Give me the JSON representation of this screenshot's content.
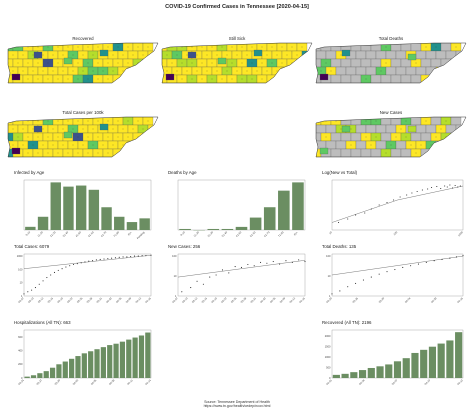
{
  "title": "COVID-19 Confirmed Cases in Tennessee [2020-04-15]",
  "colors": {
    "bar": "#6b8e62",
    "map_gray": "#bdbdbd",
    "viridis": [
      "#440154",
      "#3b528b",
      "#21918c",
      "#5ec962",
      "#b5de2b",
      "#fde725"
    ]
  },
  "maps": [
    {
      "id": "recovered",
      "title": "Recovered"
    },
    {
      "id": "still-sick",
      "title": "Still Sick"
    },
    {
      "id": "total-deaths",
      "title": "Total Deaths"
    },
    {
      "id": "cases-per-100k",
      "title": "Total Cases per 100k"
    },
    {
      "id": "new-cases",
      "title": "New Cases"
    }
  ],
  "chart_data": [
    {
      "id": "infected-by-age",
      "type": "bar",
      "title": "Infected by Age",
      "categories": [
        "0-10",
        "11-20",
        "21-30",
        "31-40",
        "41-50",
        "51-60",
        "61-70",
        "71-80",
        "81+",
        "Pending"
      ],
      "values": [
        60,
        250,
        900,
        820,
        840,
        760,
        430,
        250,
        150,
        220
      ]
    },
    {
      "id": "deaths-by-age",
      "type": "bar",
      "title": "Deaths by Age",
      "categories": [
        "0-10",
        "11-20",
        "21-30",
        "31-40",
        "41-50",
        "51-60",
        "61-70",
        "71-80",
        "81+"
      ],
      "values": [
        1,
        0,
        1,
        1,
        3,
        12,
        22,
        38,
        46
      ]
    },
    {
      "id": "log-new-vs-total",
      "type": "scatter",
      "title": "Log(New vs Total)",
      "x_ticks": [
        "10",
        "100",
        "1000"
      ],
      "points": [
        [
          0.05,
          0.15
        ],
        [
          0.12,
          0.22
        ],
        [
          0.18,
          0.3
        ],
        [
          0.25,
          0.34
        ],
        [
          0.3,
          0.42
        ],
        [
          0.36,
          0.5
        ],
        [
          0.42,
          0.55
        ],
        [
          0.47,
          0.6
        ],
        [
          0.52,
          0.66
        ],
        [
          0.57,
          0.7
        ],
        [
          0.61,
          0.74
        ],
        [
          0.65,
          0.77
        ],
        [
          0.69,
          0.8
        ],
        [
          0.73,
          0.82
        ],
        [
          0.76,
          0.85
        ],
        [
          0.8,
          0.87
        ],
        [
          0.83,
          0.83
        ],
        [
          0.86,
          0.88
        ],
        [
          0.88,
          0.86
        ],
        [
          0.9,
          0.9
        ],
        [
          0.92,
          0.84
        ],
        [
          0.94,
          0.89
        ],
        [
          0.96,
          0.86
        ],
        [
          0.98,
          0.88
        ]
      ],
      "fit": [
        [
          0.0,
          0.15
        ],
        [
          0.5,
          0.6
        ],
        [
          1.0,
          0.88
        ]
      ]
    },
    {
      "id": "total-cases",
      "type": "scatter",
      "title": "Total Cases: 6079",
      "y_ticks": [
        "1",
        "10",
        "100",
        "1000"
      ],
      "x_ticks": [
        "03-07",
        "03-10",
        "03-13",
        "03-16",
        "03-19",
        "03-22",
        "03-25",
        "03-28",
        "03-31",
        "04-03",
        "04-06",
        "04-09",
        "04-12",
        "04-15"
      ],
      "points": [
        [
          0.0,
          0.05
        ],
        [
          0.03,
          0.1
        ],
        [
          0.06,
          0.14
        ],
        [
          0.09,
          0.2
        ],
        [
          0.12,
          0.28
        ],
        [
          0.15,
          0.36
        ],
        [
          0.18,
          0.44
        ],
        [
          0.21,
          0.5
        ],
        [
          0.24,
          0.56
        ],
        [
          0.27,
          0.61
        ],
        [
          0.3,
          0.65
        ],
        [
          0.33,
          0.69
        ],
        [
          0.36,
          0.72
        ],
        [
          0.39,
          0.75
        ],
        [
          0.42,
          0.77
        ],
        [
          0.45,
          0.79
        ],
        [
          0.48,
          0.81
        ],
        [
          0.51,
          0.83
        ],
        [
          0.54,
          0.84
        ],
        [
          0.57,
          0.86
        ],
        [
          0.6,
          0.87
        ],
        [
          0.63,
          0.88
        ],
        [
          0.66,
          0.89
        ],
        [
          0.69,
          0.9
        ],
        [
          0.72,
          0.91
        ],
        [
          0.75,
          0.92
        ],
        [
          0.78,
          0.93
        ],
        [
          0.81,
          0.93
        ],
        [
          0.84,
          0.94
        ],
        [
          0.87,
          0.95
        ],
        [
          0.9,
          0.95
        ],
        [
          0.93,
          0.96
        ],
        [
          0.96,
          0.96
        ],
        [
          1.0,
          0.97
        ]
      ],
      "fit": [
        [
          0.0,
          0.65
        ],
        [
          1.0,
          0.97
        ]
      ]
    },
    {
      "id": "new-cases",
      "type": "scatter",
      "title": "New Cases: 256",
      "y_ticks": [
        "1",
        "10",
        "100"
      ],
      "x_ticks": [
        "03-07",
        "03-10",
        "03-13",
        "03-16",
        "03-19",
        "03-22",
        "03-25",
        "03-28",
        "03-31",
        "04-03",
        "04-06",
        "04-09",
        "04-12",
        "04-15"
      ],
      "points": [
        [
          0.03,
          0.1
        ],
        [
          0.1,
          0.2
        ],
        [
          0.15,
          0.35
        ],
        [
          0.2,
          0.28
        ],
        [
          0.25,
          0.45
        ],
        [
          0.3,
          0.5
        ],
        [
          0.35,
          0.62
        ],
        [
          0.4,
          0.55
        ],
        [
          0.45,
          0.7
        ],
        [
          0.5,
          0.68
        ],
        [
          0.55,
          0.75
        ],
        [
          0.6,
          0.72
        ],
        [
          0.65,
          0.8
        ],
        [
          0.7,
          0.78
        ],
        [
          0.75,
          0.82
        ],
        [
          0.8,
          0.76
        ],
        [
          0.85,
          0.84
        ],
        [
          0.9,
          0.8
        ],
        [
          0.95,
          0.86
        ],
        [
          1.0,
          0.82
        ]
      ],
      "fit": [
        [
          0.0,
          0.45
        ],
        [
          1.0,
          0.85
        ]
      ]
    },
    {
      "id": "total-deaths",
      "type": "scatter",
      "title": "Total Deaths: 135",
      "y_ticks": [
        "1",
        "10",
        "100"
      ],
      "x_ticks": [
        "03-20",
        "03-25",
        "03-30",
        "04-04",
        "04-09",
        "04-15"
      ],
      "points": [
        [
          0.0,
          0.05
        ],
        [
          0.06,
          0.12
        ],
        [
          0.12,
          0.22
        ],
        [
          0.18,
          0.3
        ],
        [
          0.24,
          0.38
        ],
        [
          0.3,
          0.45
        ],
        [
          0.36,
          0.52
        ],
        [
          0.42,
          0.58
        ],
        [
          0.48,
          0.63
        ],
        [
          0.54,
          0.68
        ],
        [
          0.6,
          0.72
        ],
        [
          0.66,
          0.76
        ],
        [
          0.72,
          0.8
        ],
        [
          0.78,
          0.84
        ],
        [
          0.84,
          0.87
        ],
        [
          0.9,
          0.9
        ],
        [
          0.95,
          0.93
        ],
        [
          1.0,
          0.96
        ]
      ],
      "fit": [
        [
          0.0,
          0.5
        ],
        [
          1.0,
          0.95
        ]
      ]
    },
    {
      "id": "hospitalizations",
      "type": "bar",
      "title": "Hospitalizations (All TN): 663",
      "y_ticks": [
        "0",
        "200",
        "400",
        "600"
      ],
      "ylim": [
        0,
        700
      ],
      "x_ticks": [
        "03-24",
        "03-27",
        "03-30",
        "04-02",
        "04-05",
        "04-08",
        "04-11",
        "04-14"
      ],
      "values": [
        20,
        40,
        70,
        100,
        150,
        200,
        240,
        280,
        320,
        360,
        390,
        420,
        450,
        480,
        500,
        530,
        560,
        590,
        620,
        663
      ]
    },
    {
      "id": "recovered-bars",
      "type": "bar",
      "title": "Recovered (All TN): 2196",
      "y_ticks": [
        "0",
        "500",
        "1000",
        "1500",
        "2000"
      ],
      "ylim": [
        0,
        2300
      ],
      "x_ticks": [
        "04-01",
        "04-04",
        "04-07",
        "04-10",
        "04-13"
      ],
      "values": [
        150,
        200,
        280,
        380,
        480,
        560,
        650,
        800,
        950,
        1200,
        1350,
        1500,
        1650,
        1800,
        2196
      ]
    }
  ],
  "source": {
    "line1": "Source: Tennessee Department of Health",
    "line2": "https://www.tn.gov/health/cedep/ncov.html"
  }
}
